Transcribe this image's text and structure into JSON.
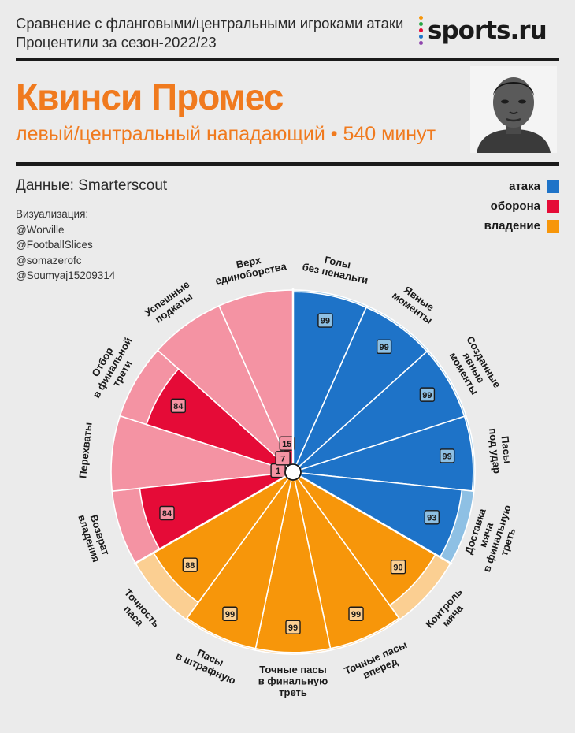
{
  "header": {
    "subtitle_line1": "Сравнение с фланговыми/центральными игроками атаки",
    "subtitle_line2": "Процентили за сезон-2022/23",
    "logo_text": "sports.ru",
    "player_name": "Квинси Промес",
    "player_role": "левый/центральный нападающий • 540 минут"
  },
  "source": "Данные: Smarterscout",
  "credits": [
    "Визуализация:",
    "@Worville",
    "@FootballSlices",
    "@somazerofc",
    "@Soumyaj15209314"
  ],
  "legend": [
    {
      "label": "атака",
      "color": "#1e73c8"
    },
    {
      "label": "оборона",
      "color": "#e50b37"
    },
    {
      "label": "владение",
      "color": "#f7960a"
    }
  ],
  "colors": {
    "background": "#ebebeb",
    "name": "#f07a1e",
    "attack": "#1e73c8",
    "attack_light": "#8ec0e4",
    "defense": "#e50b37",
    "defense_light": "#f493a3",
    "possession": "#f7960a",
    "possession_light": "#fbcf92"
  },
  "chart_data": {
    "type": "polar-bar",
    "max": 100,
    "series": [
      {
        "category": "Голы\nбез пенальти",
        "group": "attack",
        "value": 99
      },
      {
        "category": "Явные\nмоменты",
        "group": "attack",
        "value": 99
      },
      {
        "category": "Созданные\nявные\nмоменты",
        "group": "attack",
        "value": 99
      },
      {
        "category": "Пасы\nпод удар",
        "group": "attack",
        "value": 99
      },
      {
        "category": "Доставка\nмяча\nв финальную\nтреть",
        "group": "attack",
        "value": 93
      },
      {
        "category": "Контроль\nмяча",
        "group": "possession",
        "value": 90
      },
      {
        "category": "Точные пасы\nвперед",
        "group": "possession",
        "value": 99
      },
      {
        "category": "Точные пасы\nв финальную\nтреть",
        "group": "possession",
        "value": 99
      },
      {
        "category": "Пасы\nв штрафную",
        "group": "possession",
        "value": 99
      },
      {
        "category": "Точность\nпаса",
        "group": "possession",
        "value": 88
      },
      {
        "category": "Возврат\nвладения",
        "group": "defense",
        "value": 84
      },
      {
        "category": "Перехваты",
        "group": "defense",
        "value": 1
      },
      {
        "category": "Отбор\nв финальной\nтрети",
        "group": "defense",
        "value": 84
      },
      {
        "category": "Успешные\nподкаты",
        "group": "defense",
        "value": 7
      },
      {
        "category": "Верх\nединоборства",
        "group": "defense",
        "value": 15
      }
    ]
  }
}
